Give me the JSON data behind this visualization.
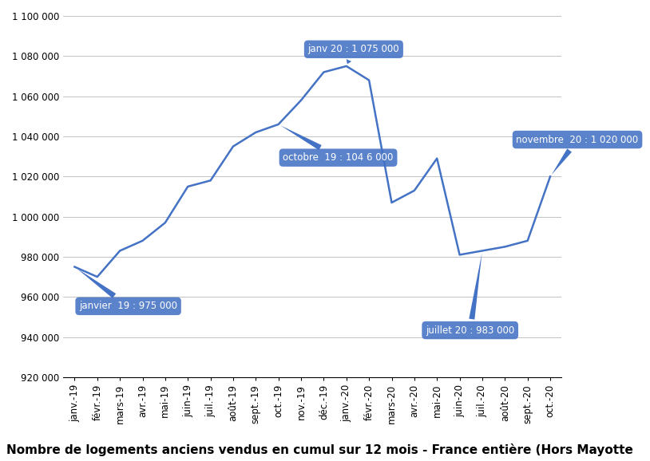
{
  "x_labels": [
    "janv.-19",
    "févr.-19",
    "mars-19",
    "avr.-19",
    "mai-19",
    "juin-19",
    "juil.-19",
    "août-19",
    "sept.-19",
    "oct.-19",
    "nov.-19",
    "déc.-19",
    "janv.-20",
    "févr.-20",
    "mars-20",
    "avr.-20",
    "mai-20",
    "juin-20",
    "juil.-20",
    "août-20",
    "sept.-20",
    "oct.-20"
  ],
  "values": [
    975000,
    970000,
    983000,
    988000,
    997000,
    1015000,
    1018000,
    1035000,
    1042000,
    1046000,
    1058000,
    1072000,
    1075000,
    1068000,
    1007000,
    1013000,
    1029000,
    981000,
    983000,
    985000,
    988000,
    1020000
  ],
  "line_color": "#4472C4",
  "fill_color": "#4472C4",
  "background_color": "#FFFFFF",
  "ylim_min": 920000,
  "ylim_max": 1100000,
  "ytick_step": 20000,
  "title": "Nombre de logements anciens vendus en cumul sur 12 mois - France entière (Hors Mayotte",
  "title_fontsize": 11,
  "axis_fontsize": 8.5
}
